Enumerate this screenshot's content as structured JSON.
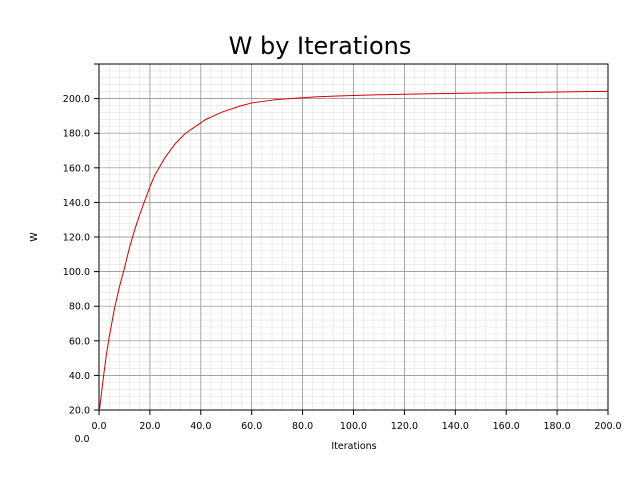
{
  "chart_data": {
    "type": "line",
    "title": "W by Iterations",
    "xlabel": "Iterations",
    "ylabel": "W",
    "xlim": [
      0,
      200
    ],
    "ylim": [
      20,
      220
    ],
    "x_ticks": [
      "0.0",
      "20.0",
      "40.0",
      "60.0",
      "80.0",
      "100.0",
      "120.0",
      "140.0",
      "160.0",
      "180.0",
      "200.0"
    ],
    "y_ticks": [
      "20.0",
      "40.0",
      "60.0",
      "80.0",
      "100.0",
      "120.0",
      "140.0",
      "160.0",
      "180.0",
      "200.0"
    ],
    "origin_label": "0.0",
    "grid": true,
    "line_color": "#d40000",
    "series": [
      {
        "x": [
          0,
          1,
          2,
          3,
          4,
          5,
          6,
          8,
          10,
          12,
          14,
          16,
          18,
          20,
          22,
          24,
          26,
          28,
          30,
          32,
          34,
          36,
          38,
          40,
          42,
          45,
          48,
          50,
          55,
          60,
          65,
          70,
          75,
          80,
          85,
          90,
          95,
          100,
          110,
          120,
          130,
          140,
          150,
          160,
          170,
          180,
          190,
          200
        ],
        "y": [
          18,
          30,
          42,
          53,
          62,
          70,
          78,
          91,
          102,
          114,
          124,
          133,
          141,
          149,
          156,
          161,
          166,
          170,
          174,
          177,
          180,
          182,
          184,
          186,
          188,
          190,
          192,
          193,
          195.5,
          197.5,
          198.5,
          199.5,
          200,
          200.5,
          201,
          201.3,
          201.6,
          201.8,
          202.2,
          202.5,
          202.8,
          203,
          203.2,
          203.4,
          203.6,
          203.8,
          204,
          204.2
        ]
      }
    ]
  }
}
